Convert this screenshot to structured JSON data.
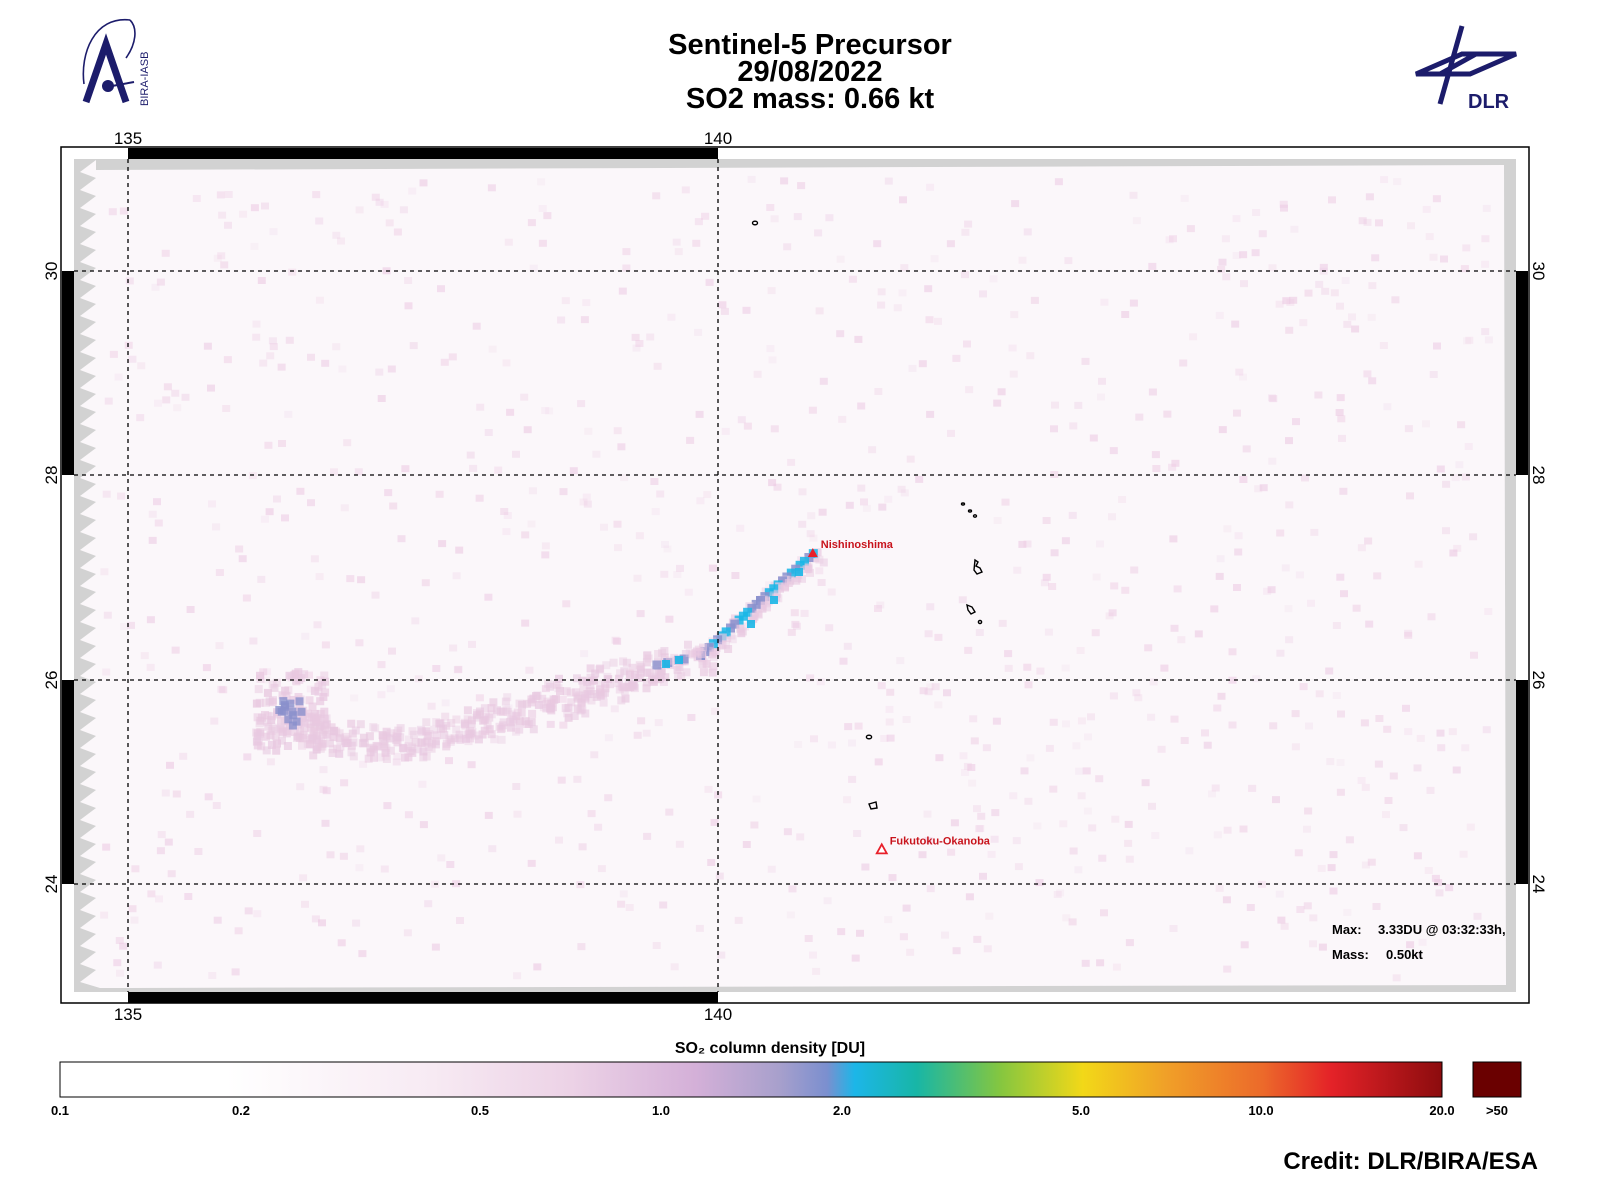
{
  "header": {
    "title_line1": "Sentinel-5 Precursor",
    "title_line2": "29/08/2022",
    "title_line3": "SO2 mass: 0.66   kt"
  },
  "logos": {
    "left": {
      "icon": "bira-iasb-logo",
      "text": "BIRA-IASB"
    },
    "right": {
      "icon": "dlr-logo",
      "text": "DLR"
    }
  },
  "map": {
    "lon_ticks": [
      "135",
      "140"
    ],
    "lat_ticks": [
      "30",
      "28",
      "26",
      "24"
    ],
    "extent": {
      "lon_min": 134.45,
      "lon_max": 147.0,
      "lat_min": 22.85,
      "lat_max": 31.2
    },
    "volcanoes": [
      {
        "name": "Nishinoshima",
        "lon": 140.88,
        "lat": 27.25
      },
      {
        "name": "Fukutoku-Okanoba",
        "lon": 141.48,
        "lat": 24.28
      }
    ],
    "stats": {
      "max_label": "Max:",
      "max_value": "3.33DU @ 03:32:33h,",
      "mass_label": "Mass:",
      "mass_value": "0.50kt"
    },
    "plume_color_low": "#e8c8e0",
    "plume_color_mid": "#8a90cc",
    "plume_color_high": "#19b6e6",
    "volcano_color": "#e8202a"
  },
  "colorbar": {
    "title": "SO₂ column density [DU]",
    "tick_labels": [
      "0.1",
      "0.2",
      "0.5",
      "1.0",
      "2.0",
      "5.0",
      "10.0",
      "20.0"
    ],
    "overflow_label": ">50",
    "overflow_color": "#6a0000"
  },
  "credit": "Credit: DLR/BIRA/ESA"
}
